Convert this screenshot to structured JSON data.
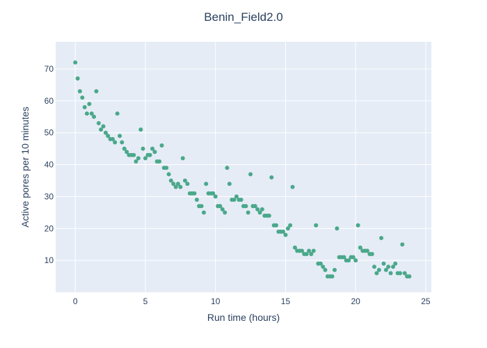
{
  "chart_data": {
    "type": "scatter",
    "title": "Benin_Field2.0",
    "xlabel": "Run time (hours)",
    "ylabel": "Active pores per 10 minutes",
    "xlim": [
      -1.4,
      25.4
    ],
    "ylim": [
      0,
      78.5
    ],
    "xticks": [
      0,
      5,
      10,
      15,
      20,
      25
    ],
    "yticks": [
      10,
      20,
      30,
      40,
      50,
      60,
      70
    ],
    "grid": true,
    "legend": "none",
    "colors": {
      "marker": "#4aa88a",
      "plot_bg": "#e5ecf6",
      "grid": "#ffffff",
      "text": "#2a3f5f"
    },
    "series": [
      {
        "x": [
          0.0,
          0.17,
          0.33,
          0.5,
          0.67,
          0.83,
          1.0,
          1.17,
          1.33,
          1.5,
          1.67,
          1.83,
          2.0,
          2.17,
          2.33,
          2.5,
          2.67,
          2.83,
          3.0,
          3.17,
          3.33,
          3.5,
          3.67,
          3.83,
          4.0,
          4.17,
          4.33,
          4.5,
          4.67,
          4.83,
          5.0,
          5.17,
          5.33,
          5.5,
          5.67,
          5.83,
          6.0,
          6.17,
          6.33,
          6.5,
          6.67,
          6.83,
          7.0,
          7.17,
          7.33,
          7.5,
          7.67,
          7.83,
          8.0,
          8.17,
          8.33,
          8.5,
          8.67,
          8.83,
          9.0,
          9.17,
          9.33,
          9.5,
          9.67,
          9.83,
          10.0,
          10.17,
          10.33,
          10.5,
          10.67,
          10.83,
          11.0,
          11.17,
          11.33,
          11.5,
          11.67,
          11.83,
          12.0,
          12.17,
          12.33,
          12.5,
          12.67,
          12.83,
          13.0,
          13.17,
          13.33,
          13.5,
          13.67,
          13.83,
          14.0,
          14.17,
          14.33,
          14.5,
          14.67,
          14.83,
          15.0,
          15.17,
          15.33,
          15.5,
          15.67,
          15.83,
          16.0,
          16.17,
          16.33,
          16.5,
          16.67,
          16.83,
          17.0,
          17.17,
          17.33,
          17.5,
          17.67,
          17.83,
          18.0,
          18.17,
          18.33,
          18.5,
          18.67,
          18.83,
          19.0,
          19.17,
          19.33,
          19.5,
          19.67,
          19.83,
          20.0,
          20.17,
          20.33,
          20.5,
          20.67,
          20.83,
          21.0,
          21.17,
          21.33,
          21.5,
          21.67,
          21.83,
          22.0,
          22.17,
          22.33,
          22.5,
          22.67,
          22.83,
          23.0,
          23.17,
          23.33,
          23.5,
          23.67,
          23.83
        ],
        "y": [
          72,
          67,
          63,
          61,
          58,
          56,
          59,
          56,
          55,
          63,
          53,
          51,
          52,
          50,
          49,
          48,
          48,
          47,
          56,
          49,
          47,
          45,
          44,
          43,
          43,
          43,
          41,
          42,
          51,
          45,
          42,
          43,
          43,
          45,
          44,
          41,
          41,
          46,
          39,
          39,
          37,
          35,
          34,
          33,
          34,
          33,
          42,
          35,
          34,
          31,
          31,
          31,
          29,
          27,
          27,
          25,
          34,
          31,
          31,
          31,
          30,
          27,
          27,
          26,
          25,
          39,
          34,
          29,
          29,
          30,
          29,
          29,
          27,
          27,
          25,
          37,
          27,
          27,
          26,
          25,
          26,
          24,
          24,
          24,
          36,
          21,
          21,
          19,
          19,
          19,
          18,
          20,
          21,
          33,
          14,
          13,
          13,
          13,
          12,
          12,
          13,
          12,
          13,
          21,
          9,
          9,
          8,
          7,
          5,
          5,
          5,
          7,
          20,
          11,
          11,
          11,
          10,
          10,
          11,
          11,
          10,
          21,
          14,
          13,
          13,
          13,
          12,
          12,
          8,
          6,
          7,
          17,
          9,
          7,
          8,
          6,
          8,
          9,
          6,
          6,
          15,
          6,
          5,
          5
        ]
      }
    ]
  }
}
